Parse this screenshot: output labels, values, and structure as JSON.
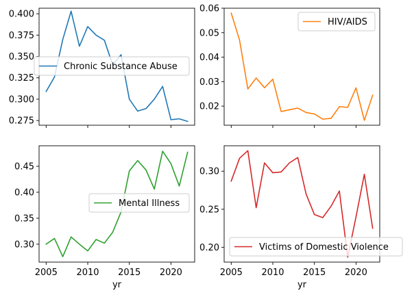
{
  "chart_data": [
    {
      "type": "line",
      "x": [
        2005,
        2006,
        2007,
        2008,
        2009,
        2010,
        2011,
        2012,
        2013,
        2014,
        2015,
        2016,
        2017,
        2018,
        2019,
        2020,
        2021,
        2022
      ],
      "series": [
        {
          "name": "Chronic Substance Abuse",
          "color": "#1f77b4",
          "values": [
            0.309,
            0.326,
            0.37,
            0.403,
            0.362,
            0.385,
            0.375,
            0.369,
            0.34,
            0.352,
            0.3,
            0.286,
            0.289,
            0.3,
            0.315,
            0.276,
            0.277,
            0.274
          ]
        }
      ],
      "xlabel": "",
      "ylim": [
        0.2695,
        0.4065
      ],
      "yticks": [
        0.275,
        0.3,
        0.325,
        0.35,
        0.375,
        0.4
      ],
      "ytick_labels": [
        "0.275",
        "0.300",
        "0.325",
        "0.350",
        "0.375",
        "0.400"
      ],
      "xticks": [],
      "legend_position": "center-left"
    },
    {
      "type": "line",
      "x": [
        2005,
        2006,
        2007,
        2008,
        2009,
        2010,
        2011,
        2012,
        2013,
        2014,
        2015,
        2016,
        2017,
        2018,
        2019,
        2020,
        2021,
        2022
      ],
      "series": [
        {
          "name": "HIV/AIDS",
          "color": "#ff7f0e",
          "values": [
            0.058,
            0.047,
            0.027,
            0.0315,
            0.0275,
            0.031,
            0.0178,
            0.0185,
            0.0192,
            0.0174,
            0.0168,
            0.0147,
            0.015,
            0.0198,
            0.0195,
            0.0275,
            0.0142,
            0.0245
          ]
        }
      ],
      "xlabel": "",
      "ylim": [
        0.0122,
        0.06
      ],
      "yticks": [
        0.02,
        0.03,
        0.04,
        0.05,
        0.06
      ],
      "ytick_labels": [
        "0.02",
        "0.03",
        "0.04",
        "0.05",
        "0.06"
      ],
      "xticks": [],
      "legend_position": "top-right"
    },
    {
      "type": "line",
      "x": [
        2005,
        2006,
        2007,
        2008,
        2009,
        2010,
        2011,
        2012,
        2013,
        2014,
        2015,
        2016,
        2017,
        2018,
        2019,
        2020,
        2021,
        2022
      ],
      "series": [
        {
          "name": "Mental Illness",
          "color": "#2ca02c",
          "values": [
            0.3,
            0.311,
            0.276,
            0.314,
            0.3,
            0.287,
            0.309,
            0.302,
            0.323,
            0.362,
            0.441,
            0.461,
            0.443,
            0.406,
            0.479,
            0.455,
            0.412,
            0.477
          ]
        }
      ],
      "xlabel": "yr",
      "ylim": [
        0.2655,
        0.4895
      ],
      "yticks": [
        0.3,
        0.35,
        0.4,
        0.45
      ],
      "ytick_labels": [
        "0.30",
        "0.35",
        "0.40",
        "0.45"
      ],
      "xticks": [
        2005,
        2010,
        2015,
        2020
      ],
      "xtick_labels": [
        "2005",
        "2010",
        "2015",
        "2020"
      ],
      "legend_position": "center-right"
    },
    {
      "type": "line",
      "x": [
        2005,
        2006,
        2007,
        2008,
        2009,
        2010,
        2011,
        2012,
        2013,
        2014,
        2015,
        2016,
        2017,
        2018,
        2019,
        2020,
        2021,
        2022
      ],
      "series": [
        {
          "name": "Victims of Domestic Violence",
          "color": "#d62728",
          "values": [
            0.287,
            0.317,
            0.327,
            0.252,
            0.311,
            0.298,
            0.299,
            0.311,
            0.318,
            0.27,
            0.243,
            0.239,
            0.254,
            0.274,
            0.187,
            0.24,
            0.296,
            0.225
          ]
        }
      ],
      "xlabel": "yr",
      "ylim": [
        0.1805,
        0.3335
      ],
      "yticks": [
        0.2,
        0.25,
        0.3
      ],
      "ytick_labels": [
        "0.20",
        "0.25",
        "0.30"
      ],
      "xticks": [
        2005,
        2010,
        2015,
        2020
      ],
      "xtick_labels": [
        "2005",
        "2010",
        "2015",
        "2020"
      ],
      "legend_position": "lower-right"
    }
  ]
}
